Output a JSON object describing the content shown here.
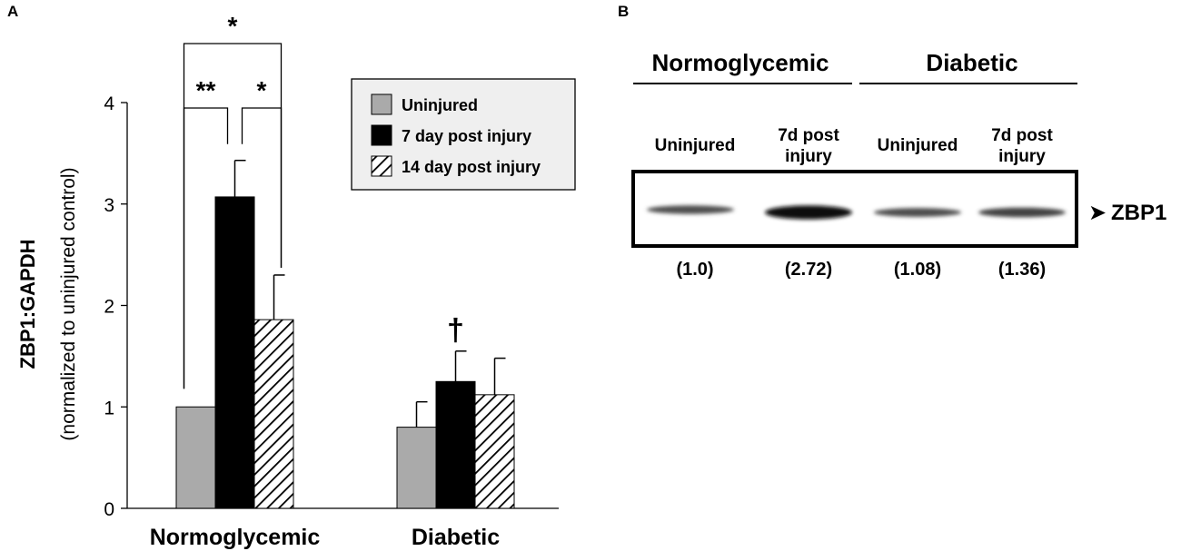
{
  "panel_a": {
    "label": "A"
  },
  "panel_b": {
    "label": "B",
    "group_labels": [
      "Normoglycemic",
      "Diabetic"
    ],
    "lane_labels": [
      [
        "Uninjured"
      ],
      [
        "7d post",
        "injury"
      ],
      [
        "Uninjured"
      ],
      [
        "7d post",
        "injury"
      ]
    ],
    "band_label": "ZBP1",
    "quantification": [
      "(1.0)",
      "(2.72)",
      "(1.08)",
      "(1.36)"
    ],
    "band_intensity": [
      1.0,
      2.72,
      1.08,
      1.36
    ]
  },
  "chart_data": {
    "type": "bar",
    "title": "",
    "ylabel": "ZBP1:GAPDH",
    "ylabel_sub": "(normalized to uninjured control)",
    "xlabel": "",
    "categories": [
      "Normoglycemic",
      "Diabetic"
    ],
    "ylim": [
      0,
      4
    ],
    "yticks": [
      0,
      1,
      2,
      3,
      4
    ],
    "grid": false,
    "legend_position": "top-right",
    "series": [
      {
        "name": "Uninjured",
        "values": [
          1.0,
          0.8
        ],
        "errors": [
          0,
          0.25
        ],
        "fill": "#aaaaaa",
        "pattern": "solid"
      },
      {
        "name": "7 day post injury",
        "values": [
          3.07,
          1.25
        ],
        "errors": [
          0.36,
          0.3
        ],
        "fill": "#000000",
        "pattern": "solid"
      },
      {
        "name": "14 day post injury",
        "values": [
          1.86,
          1.12
        ],
        "errors": [
          0.44,
          0.36
        ],
        "fill": "#ffffff",
        "pattern": "diagonal-hatch"
      }
    ],
    "annotations": [
      {
        "text": "*",
        "type": "bracket",
        "category": 0,
        "from_series": 0,
        "to_series": 2,
        "level": 2
      },
      {
        "text": "**",
        "type": "bracket",
        "category": 0,
        "from_series": 0,
        "to_series": 1,
        "level": 1
      },
      {
        "text": "*",
        "type": "bracket",
        "category": 0,
        "from_series": 1,
        "to_series": 2,
        "level": 1
      },
      {
        "text": "†",
        "type": "mark",
        "category": 1,
        "series": 1
      }
    ]
  },
  "colors": {
    "gray_bar": "#aaaaaa",
    "black_bar": "#000000",
    "legend_bg": "#efefef"
  }
}
